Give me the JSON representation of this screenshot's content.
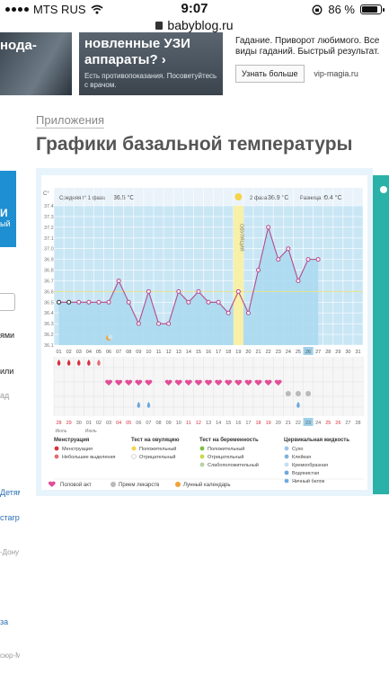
{
  "statusbar": {
    "carrier": "MTS RUS",
    "time": "9:07",
    "battery": "86 %"
  },
  "url": "babyblog.ru",
  "ads": {
    "ad1_text": "нода-",
    "ad2_title": "новленные УЗИ аппараты? ›",
    "ad2_note": "Есть противопоказания. Посоветуйтесь с врачом.",
    "ad3_text": "Гадание. Приворот любимого. Все виды гаданий. Быстрый результат.",
    "ad3_button": "Узнать больше",
    "ad3_site": "vip-magia.ru"
  },
  "breadcrumb": "Приложения",
  "page_title": "Графики базальной температуры",
  "leftcol": {
    "banner": "И",
    "banner_sub": "ый",
    "items": [
      "ями",
      "или",
      "ад",
      "Детям",
      "стагра",
      "-Дону",
      "за",
      "сюр-Мо"
    ]
  },
  "chart_data": {
    "type": "line",
    "unit": "C°",
    "ylim": [
      36.1,
      37.4
    ],
    "y_ticks": [
      "37.4",
      "37.3",
      "37.2",
      "37.1",
      "37.0",
      "36.9",
      "36.8",
      "36.7",
      "36.6",
      "36.5",
      "36.4",
      "36.3",
      "36.2",
      "36.1"
    ],
    "x_days": [
      "01",
      "02",
      "03",
      "04",
      "05",
      "06",
      "07",
      "08",
      "09",
      "10",
      "11",
      "12",
      "13",
      "14",
      "15",
      "16",
      "17",
      "18",
      "19",
      "20",
      "21",
      "22",
      "23",
      "24",
      "25",
      "26",
      "27",
      "28",
      "29",
      "30",
      "31"
    ],
    "phase1_label": "Средняя t° 1 фаза",
    "phase1_value": "36.5 °C",
    "phase2_label": "2 фаза",
    "phase2_value": "36.9 °C",
    "diff_label": "Разница t°",
    "diff_value": "0.4 °C",
    "ovulation_label": "ОВУЛЯЦИЯ",
    "ovulation_day": 19,
    "coverline": 36.6,
    "series": [
      {
        "values": [
          36.5,
          36.5,
          36.5,
          36.5,
          36.5,
          36.5,
          36.7,
          36.5,
          36.3,
          36.6,
          36.3,
          36.3,
          36.6,
          36.5,
          36.6,
          36.5,
          36.5,
          36.4,
          36.6,
          36.4,
          36.8,
          37.2,
          36.9,
          37.0,
          36.7,
          36.9,
          36.9
        ]
      }
    ],
    "cycle_days": [
      "28",
      "29",
      "30",
      "01",
      "02",
      "03",
      "04",
      "05",
      "06",
      "07",
      "08",
      "09",
      "10",
      "11",
      "12",
      "13",
      "14",
      "15",
      "16",
      "17",
      "18",
      "19",
      "20",
      "21",
      "22",
      "23",
      "24",
      "25",
      "26",
      "27",
      "28"
    ],
    "cycle_red": [
      1,
      2,
      7,
      8,
      14,
      15,
      21,
      22,
      28,
      29
    ],
    "month_labels": [
      "Июль",
      "Июль"
    ],
    "current_day": 26,
    "menstruation_days": [
      1,
      2,
      3,
      4
    ],
    "spotting_days": [
      5
    ],
    "intercourse_days": [
      6,
      7,
      8,
      9,
      10,
      12,
      13,
      14,
      15,
      16,
      17,
      18,
      19,
      20,
      21,
      22,
      23
    ],
    "medicine_days": [
      24,
      25,
      26
    ],
    "discharge_days": [
      9,
      10
    ],
    "legend": {
      "col1_title": "Менструация",
      "col1": [
        "Менструация",
        "Небольшие выделения"
      ],
      "col2_title": "Тест на овуляцию",
      "col2": [
        "Положительный",
        "Отрицательный"
      ],
      "col3_title": "Тест на беременность",
      "col3": [
        "Положительный",
        "Отрицательный",
        "Слабоположительный"
      ],
      "col4_title": "Цервикальная жидкость",
      "col4": [
        "Сухо",
        "Клейкая",
        "Кремообразная",
        "Водянистая",
        "Яичный белок"
      ],
      "bottom": [
        "Половой акт",
        "Прием лекарств",
        "Лунный календарь"
      ]
    }
  }
}
